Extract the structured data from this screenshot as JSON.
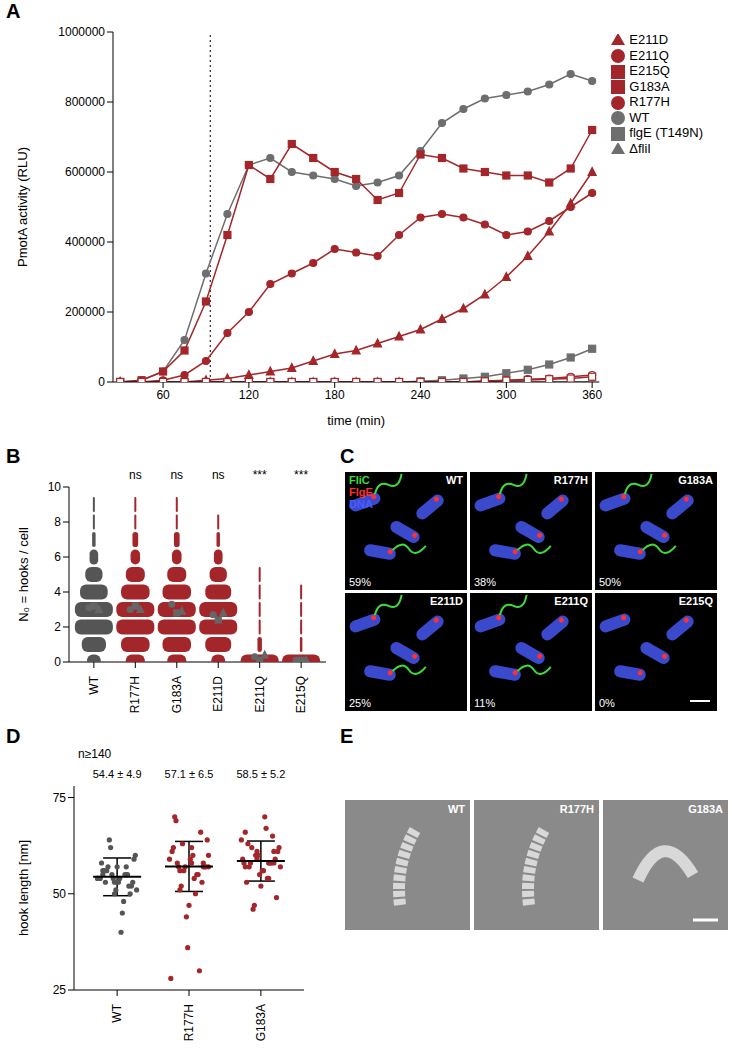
{
  "chart_data": [
    {
      "panel": "A",
      "type": "line",
      "x_label": "time (min)",
      "y_label": "PmotA activity (RLU)",
      "x": [
        30,
        45,
        60,
        75,
        90,
        105,
        120,
        135,
        150,
        165,
        180,
        195,
        210,
        225,
        240,
        255,
        270,
        285,
        300,
        315,
        330,
        345,
        360
      ],
      "xlim": [
        25,
        365
      ],
      "xticks": [
        60,
        120,
        180,
        240,
        300,
        360
      ],
      "ylim": [
        0,
        1000000
      ],
      "yticks": [
        0,
        200000,
        400000,
        600000,
        800000,
        1000000
      ],
      "vline": 93,
      "legend": "right",
      "series": [
        {
          "name": "WT",
          "color": "#6e6e6e",
          "marker": "circle",
          "values": [
            0,
            5000,
            30000,
            120000,
            310000,
            480000,
            620000,
            640000,
            600000,
            590000,
            580000,
            560000,
            570000,
            590000,
            660000,
            740000,
            780000,
            810000,
            820000,
            830000,
            850000,
            880000,
            860000
          ]
        },
        {
          "name": "flgE (T149N)",
          "color": "#6e6e6e",
          "marker": "square",
          "values": [
            0,
            0,
            0,
            0,
            0,
            0,
            0,
            0,
            0,
            0,
            0,
            0,
            0,
            0,
            2000,
            5000,
            10000,
            15000,
            25000,
            35000,
            50000,
            70000,
            95000
          ]
        },
        {
          "name": "ΔfliI",
          "color": "#6e6e6e",
          "marker": "triangle",
          "values": [
            0,
            0,
            0,
            0,
            0,
            0,
            0,
            0,
            0,
            0,
            0,
            0,
            0,
            0,
            0,
            0,
            0,
            0,
            0,
            0,
            0,
            0,
            0
          ]
        },
        {
          "name": "R177H",
          "color": "#a3262a",
          "marker": "circle",
          "values": [
            0,
            0,
            5000,
            20000,
            60000,
            140000,
            200000,
            280000,
            310000,
            340000,
            380000,
            370000,
            360000,
            420000,
            470000,
            480000,
            470000,
            450000,
            420000,
            430000,
            460000,
            500000,
            540000
          ]
        },
        {
          "name": "G183A",
          "color": "#a3262a",
          "marker": "square",
          "values": [
            0,
            5000,
            30000,
            90000,
            230000,
            420000,
            620000,
            580000,
            680000,
            640000,
            600000,
            580000,
            520000,
            540000,
            650000,
            640000,
            610000,
            600000,
            590000,
            590000,
            570000,
            610000,
            720000
          ]
        },
        {
          "name": "E211D",
          "color": "#a3262a",
          "marker": "triangle",
          "values": [
            0,
            0,
            0,
            0,
            5000,
            10000,
            20000,
            30000,
            40000,
            60000,
            80000,
            90000,
            110000,
            130000,
            150000,
            180000,
            210000,
            250000,
            300000,
            360000,
            430000,
            510000,
            600000
          ]
        },
        {
          "name": "E211Q",
          "color": "#a3262a",
          "marker": "open_circle",
          "values": [
            0,
            0,
            0,
            0,
            0,
            0,
            0,
            0,
            0,
            0,
            0,
            0,
            0,
            0,
            0,
            0,
            0,
            3000,
            5000,
            8000,
            10000,
            15000,
            20000
          ]
        },
        {
          "name": "E215Q",
          "color": "#a3262a",
          "marker": "open_square",
          "values": [
            0,
            0,
            0,
            0,
            0,
            0,
            0,
            0,
            0,
            0,
            0,
            0,
            0,
            0,
            0,
            0,
            0,
            2000,
            4000,
            6000,
            8000,
            10000,
            15000
          ]
        }
      ]
    },
    {
      "panel": "B",
      "type": "violin",
      "y_label": "N₀ = hooks / cell",
      "categories": [
        "WT",
        "R177H",
        "G183A",
        "E211D",
        "E211Q",
        "E215Q"
      ],
      "colors": [
        "#555555",
        "#a3262a",
        "#a3262a",
        "#a3262a",
        "#a3262a",
        "#a3262a"
      ],
      "n0": [
        0,
        1,
        2,
        3,
        4,
        5,
        6,
        7,
        8,
        9
      ],
      "frequencies": [
        [
          0.08,
          0.14,
          0.22,
          0.22,
          0.16,
          0.1,
          0.05,
          0.02,
          0.01,
          0.005
        ],
        [
          0.1,
          0.15,
          0.2,
          0.2,
          0.15,
          0.1,
          0.05,
          0.03,
          0.01,
          0.005
        ],
        [
          0.1,
          0.15,
          0.2,
          0.2,
          0.15,
          0.1,
          0.05,
          0.03,
          0.01,
          0.005
        ],
        [
          0.08,
          0.15,
          0.22,
          0.22,
          0.15,
          0.1,
          0.05,
          0.02,
          0.01,
          0
        ],
        [
          0.85,
          0.1,
          0.04,
          0.01,
          0.005,
          0.003,
          0,
          0,
          0,
          0
        ],
        [
          0.92,
          0.06,
          0.015,
          0.005,
          0.002,
          0,
          0,
          0,
          0,
          0
        ]
      ],
      "replicate_markers": [
        "circle",
        "square",
        "triangle"
      ],
      "replicate_means": [
        [
          3.1,
          3.2,
          3.0
        ],
        [
          3.0,
          3.2,
          3.0
        ],
        [
          3.3,
          2.8,
          2.9
        ],
        [
          2.7,
          2.4,
          2.8
        ],
        [
          0.3,
          0.1,
          0.4
        ],
        [
          0.1,
          0.1,
          0.1
        ]
      ],
      "significance": [
        null,
        "ns",
        "ns",
        "ns",
        "***",
        "***"
      ],
      "ylim": [
        0,
        10
      ],
      "yticks": [
        0,
        2,
        4,
        6,
        8,
        10
      ]
    },
    {
      "panel": "D",
      "type": "scatter",
      "y_label": "hook length [nm]",
      "annotation": "n≥140",
      "categories": [
        "WT",
        "R177H",
        "G183A"
      ],
      "colors": [
        "#555555",
        "#a3262a",
        "#a3262a"
      ],
      "values": [
        [
          54,
          55,
          53,
          56,
          52,
          54,
          57,
          51,
          55,
          54,
          58,
          50,
          53,
          56,
          60,
          48,
          55,
          54,
          52,
          57,
          53,
          59,
          45,
          62,
          54,
          55,
          51,
          56,
          53,
          40,
          64,
          54,
          57,
          50,
          55
        ],
        [
          57,
          58,
          56,
          60,
          55,
          57,
          62,
          53,
          59,
          57,
          64,
          50,
          56,
          61,
          66,
          47,
          58,
          57,
          54,
          63,
          28,
          30,
          36,
          69,
          57,
          60,
          52,
          59,
          55,
          44,
          70,
          58,
          62,
          51,
          57
        ],
        [
          58,
          59,
          57,
          61,
          56,
          58,
          62,
          54,
          60,
          58,
          65,
          52,
          57,
          61,
          67,
          47,
          59,
          58,
          55,
          63,
          49,
          70,
          46,
          64,
          58,
          60,
          53,
          59,
          56,
          62,
          57,
          54,
          61,
          66,
          58
        ]
      ],
      "mean": [
        54.4,
        57.1,
        58.5
      ],
      "sd": [
        4.9,
        6.5,
        5.2
      ],
      "stat_labels": [
        "54.4 ± 4.9",
        "57.1 ± 6.5",
        "58.5 ± 5.2"
      ],
      "ylim": [
        25,
        78
      ],
      "yticks": [
        25,
        50,
        75
      ]
    }
  ],
  "images": [
    {
      "panel": "C",
      "channels": [
        {
          "name": "FliC",
          "color": "#3ddc3d"
        },
        {
          "name": "FlgE",
          "color": "#ff3030"
        },
        {
          "name": "DNA",
          "color": "#4a5cff"
        }
      ],
      "tiles": [
        {
          "name": "WT",
          "label": "59%"
        },
        {
          "name": "R177H",
          "label": "38%"
        },
        {
          "name": "G183A",
          "label": "50%"
        },
        {
          "name": "E211D",
          "label": "25%"
        },
        {
          "name": "E211Q",
          "label": "11%"
        },
        {
          "name": "E215Q",
          "label": "0%"
        }
      ]
    },
    {
      "panel": "E",
      "tiles": [
        {
          "name": "WT"
        },
        {
          "name": "R177H"
        },
        {
          "name": "G183A"
        }
      ]
    }
  ]
}
